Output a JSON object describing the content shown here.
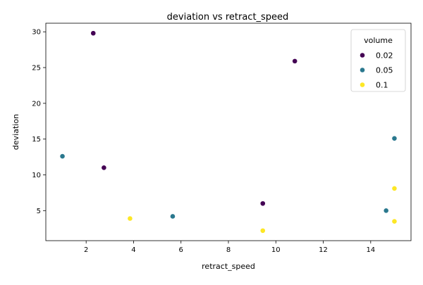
{
  "chart_data": {
    "type": "scatter",
    "title": "deviation vs retract_speed",
    "xlabel": "retract_speed",
    "ylabel": "deviation",
    "xlim": [
      0.3,
      15.7
    ],
    "ylim": [
      0.8,
      31.2
    ],
    "xticks": [
      2,
      4,
      6,
      8,
      10,
      12,
      14
    ],
    "yticks": [
      5,
      10,
      15,
      20,
      25,
      30
    ],
    "grid": false,
    "legend": {
      "title": "volume",
      "position": "top-right"
    },
    "series": [
      {
        "name": "0.02",
        "color": "#440154",
        "points": [
          {
            "x": 2.3,
            "y": 29.8
          },
          {
            "x": 10.8,
            "y": 25.9
          },
          {
            "x": 2.75,
            "y": 11.0
          },
          {
            "x": 9.45,
            "y": 6.0
          }
        ]
      },
      {
        "name": "0.05",
        "color": "#2a788e",
        "points": [
          {
            "x": 1.0,
            "y": 12.6
          },
          {
            "x": 15.0,
            "y": 15.1
          },
          {
            "x": 14.65,
            "y": 5.0
          },
          {
            "x": 5.65,
            "y": 4.2
          }
        ]
      },
      {
        "name": "0.1",
        "color": "#fde725",
        "points": [
          {
            "x": 15.0,
            "y": 8.1
          },
          {
            "x": 3.85,
            "y": 3.9
          },
          {
            "x": 9.45,
            "y": 2.2
          },
          {
            "x": 15.0,
            "y": 3.5
          }
        ]
      }
    ]
  }
}
